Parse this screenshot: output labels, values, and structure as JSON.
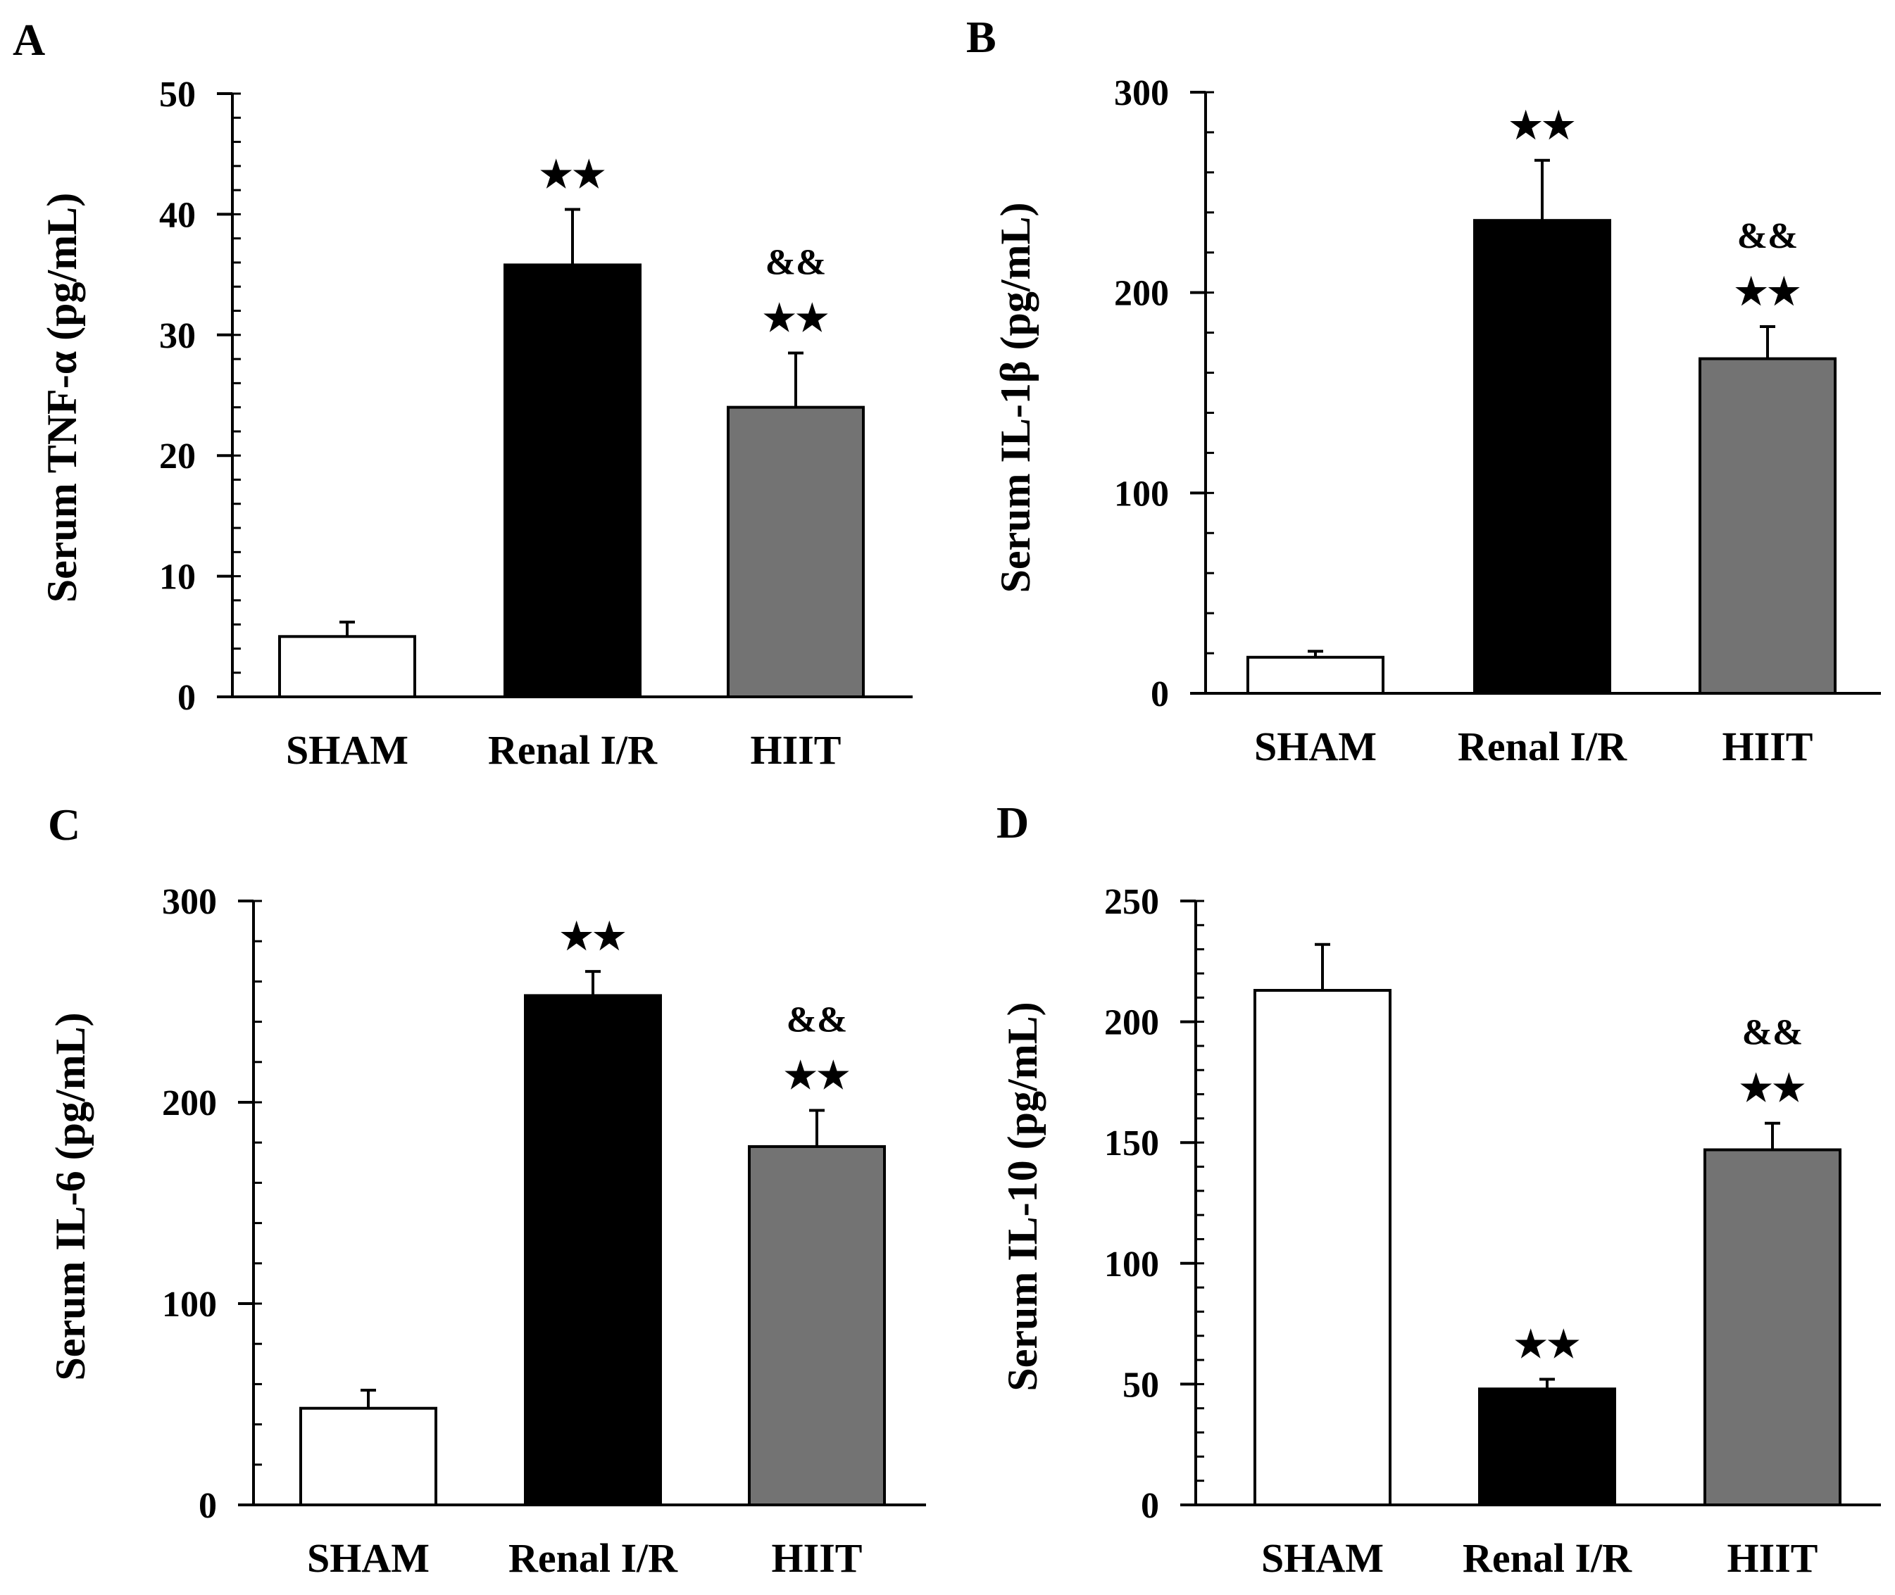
{
  "chart_data": [
    {
      "panel": "A",
      "type": "bar",
      "ylabel": "Serum TNF-α (pg/mL)",
      "categories": [
        "SHAM",
        "Renal I/R",
        "HIIT"
      ],
      "values": [
        5.0,
        35.8,
        24.0
      ],
      "errors": [
        1.2,
        4.6,
        4.5
      ],
      "ylim": [
        0,
        50
      ],
      "yticks": [
        0,
        10,
        20,
        30,
        40,
        50
      ],
      "minor_step": 2,
      "annotations": [
        "",
        "★★",
        "★★"
      ],
      "annotations2": [
        "",
        "",
        "&&"
      ],
      "colors": [
        "#ffffff",
        "#000000",
        "#737373"
      ]
    },
    {
      "panel": "B",
      "type": "bar",
      "ylabel": "Serum IL-1β (pg/mL)",
      "categories": [
        "SHAM",
        "Renal I/R",
        "HIIT"
      ],
      "values": [
        18,
        236,
        167
      ],
      "errors": [
        3,
        30,
        16
      ],
      "ylim": [
        0,
        300
      ],
      "yticks": [
        0,
        100,
        200,
        300
      ],
      "minor_step": 20,
      "annotations": [
        "",
        "★★",
        "★★"
      ],
      "annotations2": [
        "",
        "",
        "&&"
      ],
      "colors": [
        "#ffffff",
        "#000000",
        "#737373"
      ]
    },
    {
      "panel": "C",
      "type": "bar",
      "ylabel": "Serum IL-6 (pg/mL)",
      "categories": [
        "SHAM",
        "Renal I/R",
        "HIIT"
      ],
      "values": [
        48,
        253,
        178
      ],
      "errors": [
        9,
        12,
        18
      ],
      "ylim": [
        0,
        300
      ],
      "yticks": [
        0,
        100,
        200,
        300
      ],
      "minor_step": 20,
      "annotations": [
        "",
        "★★",
        "★★"
      ],
      "annotations2": [
        "",
        "",
        "&&"
      ],
      "colors": [
        "#ffffff",
        "#000000",
        "#737373"
      ]
    },
    {
      "panel": "D",
      "type": "bar",
      "ylabel": "Serum IL-10 (pg/mL)",
      "categories": [
        "SHAM",
        "Renal I/R",
        "HIIT"
      ],
      "values": [
        213,
        48,
        147
      ],
      "errors": [
        19,
        4,
        11
      ],
      "ylim": [
        0,
        250
      ],
      "yticks": [
        0,
        50,
        100,
        150,
        200,
        250
      ],
      "minor_step": 10,
      "annotations": [
        "",
        "★★",
        "★★"
      ],
      "annotations2": [
        "",
        "",
        "&&"
      ],
      "colors": [
        "#ffffff",
        "#000000",
        "#737373"
      ]
    }
  ]
}
